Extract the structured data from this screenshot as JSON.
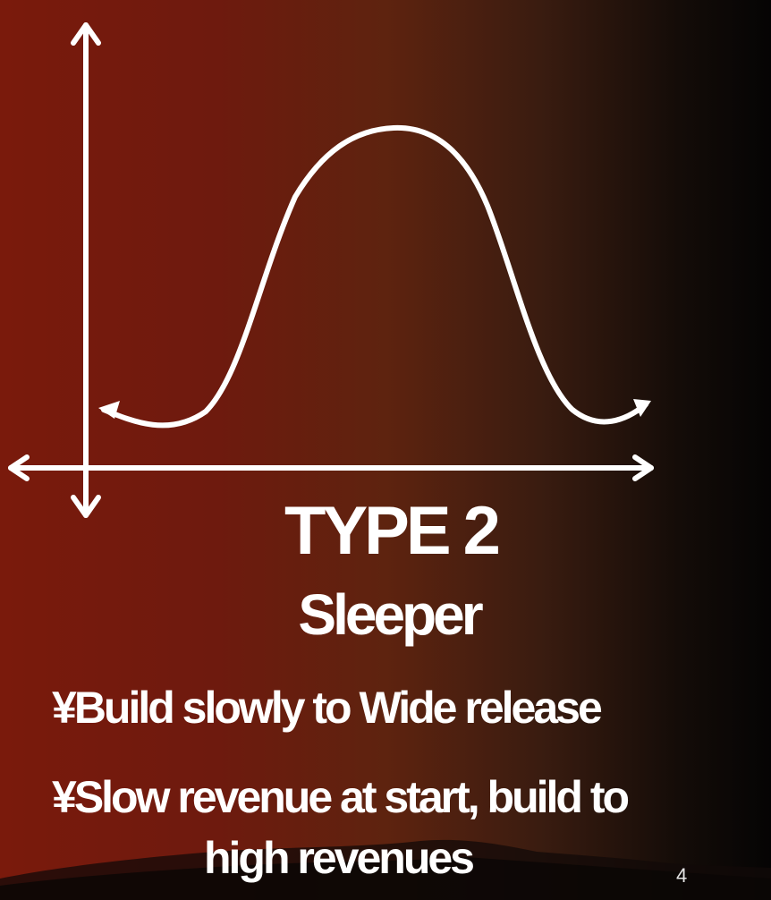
{
  "slide": {
    "title": "TYPE 2",
    "subtitle": "Sleeper",
    "bullets": [
      {
        "marker": "¥",
        "text": "Build slowly to Wide release"
      },
      {
        "marker": "¥",
        "text": "Slow revenue at start, build to",
        "continuation": "high revenues"
      }
    ],
    "page_number": "4"
  },
  "colors": {
    "background_left": "#7a1a0c",
    "background_right": "#050404",
    "foreground": "#ffffff"
  },
  "icons": [
    "double-arrow-vertical-axis",
    "double-arrow-horizontal-axis",
    "bell-curve-with-arrow-ends"
  ]
}
